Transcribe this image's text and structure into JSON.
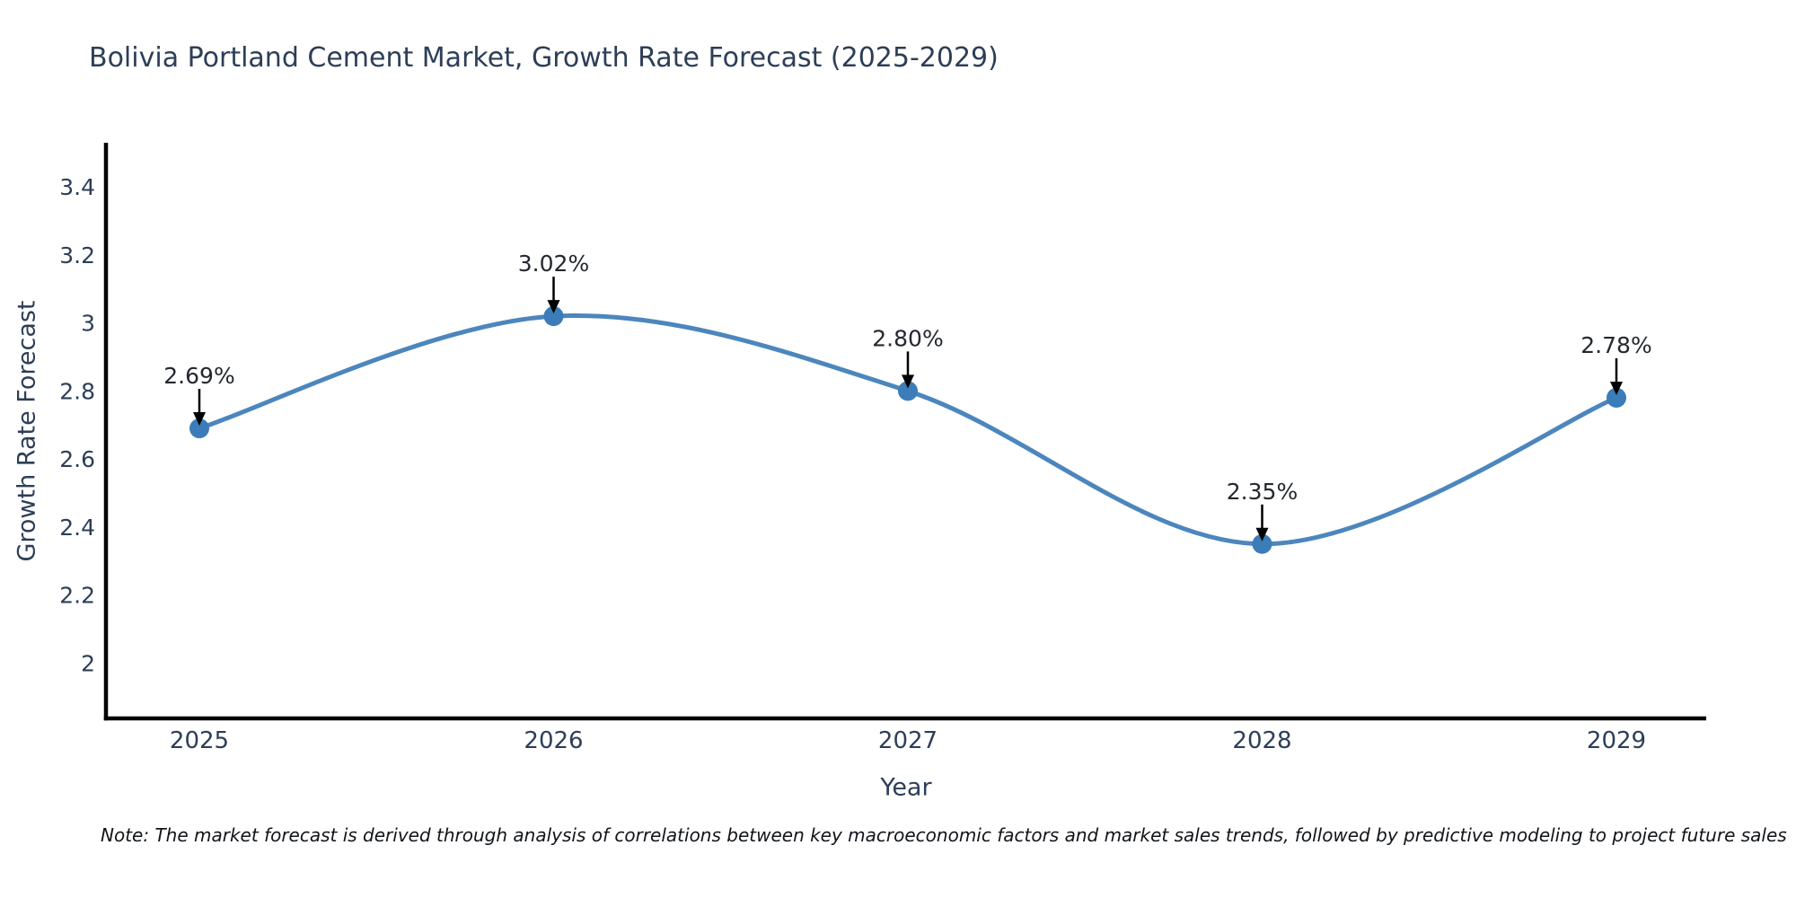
{
  "chart": {
    "title": "Bolivia Portland Cement Market, Growth Rate Forecast (2025-2029)",
    "xlabel": "Year",
    "ylabel": "Growth Rate Forecast",
    "note": "Note: The market forecast is derived through analysis of correlations between key macroeconomic factors and market sales trends, followed by predictive modeling to project future sales"
  },
  "chart_data": {
    "type": "line",
    "title": "Bolivia Portland Cement Market, Growth Rate Forecast (2025-2029)",
    "xlabel": "Year",
    "ylabel": "Growth Rate Forecast",
    "x": [
      2025,
      2026,
      2027,
      2028,
      2029
    ],
    "y": [
      2.69,
      3.02,
      2.8,
      2.35,
      2.78
    ],
    "point_labels": [
      "2.69%",
      "3.02%",
      "2.80%",
      "2.35%",
      "2.78%"
    ],
    "xtick_labels": [
      "2025",
      "2026",
      "2027",
      "2028",
      "2029"
    ],
    "yticks": [
      2,
      2.2,
      2.4,
      2.6,
      2.8,
      3,
      3.2,
      3.4
    ],
    "ytick_labels": [
      "2",
      "2.2",
      "2.4",
      "2.6",
      "2.8",
      "3",
      "3.2",
      "3.4"
    ],
    "ylim": [
      1.837,
      3.53
    ],
    "grid": false,
    "legend": false,
    "line_style": "smooth-spline",
    "line_color": "#4c86bd",
    "marker_color": "#3c7cb8",
    "spine_color": "#000000",
    "annotation_arrow_color": "#000000",
    "annotation_text_color": "#24282e",
    "tick_text_color": "#2d3e57"
  }
}
